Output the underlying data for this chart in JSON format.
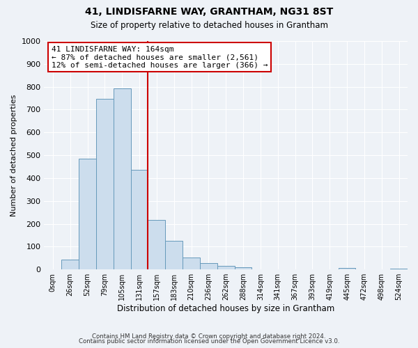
{
  "title": "41, LINDISFARNE WAY, GRANTHAM, NG31 8ST",
  "subtitle": "Size of property relative to detached houses in Grantham",
  "xlabel": "Distribution of detached houses by size in Grantham",
  "ylabel": "Number of detached properties",
  "bar_labels": [
    "0sqm",
    "26sqm",
    "52sqm",
    "79sqm",
    "105sqm",
    "131sqm",
    "157sqm",
    "183sqm",
    "210sqm",
    "236sqm",
    "262sqm",
    "288sqm",
    "314sqm",
    "341sqm",
    "367sqm",
    "393sqm",
    "419sqm",
    "445sqm",
    "472sqm",
    "498sqm",
    "524sqm"
  ],
  "bar_values": [
    0,
    42,
    485,
    748,
    793,
    437,
    218,
    125,
    52,
    28,
    15,
    10,
    0,
    0,
    0,
    0,
    0,
    8,
    0,
    0,
    5
  ],
  "bar_color": "#ccdded",
  "bar_edge_color": "#6699bb",
  "vline_x": 6.0,
  "vline_color": "#cc0000",
  "annotation_line1": "41 LINDISFARNE WAY: 164sqm",
  "annotation_line2": "← 87% of detached houses are smaller (2,561)",
  "annotation_line3": "12% of semi-detached houses are larger (366) →",
  "annotation_box_color": "#ffffff",
  "annotation_box_edge": "#cc0000",
  "ylim": [
    0,
    1000
  ],
  "yticks": [
    0,
    100,
    200,
    300,
    400,
    500,
    600,
    700,
    800,
    900,
    1000
  ],
  "footer1": "Contains HM Land Registry data © Crown copyright and database right 2024.",
  "footer2": "Contains public sector information licensed under the Open Government Licence v3.0.",
  "background_color": "#eef2f7",
  "plot_background": "#eef2f7",
  "grid_color": "#ffffff"
}
